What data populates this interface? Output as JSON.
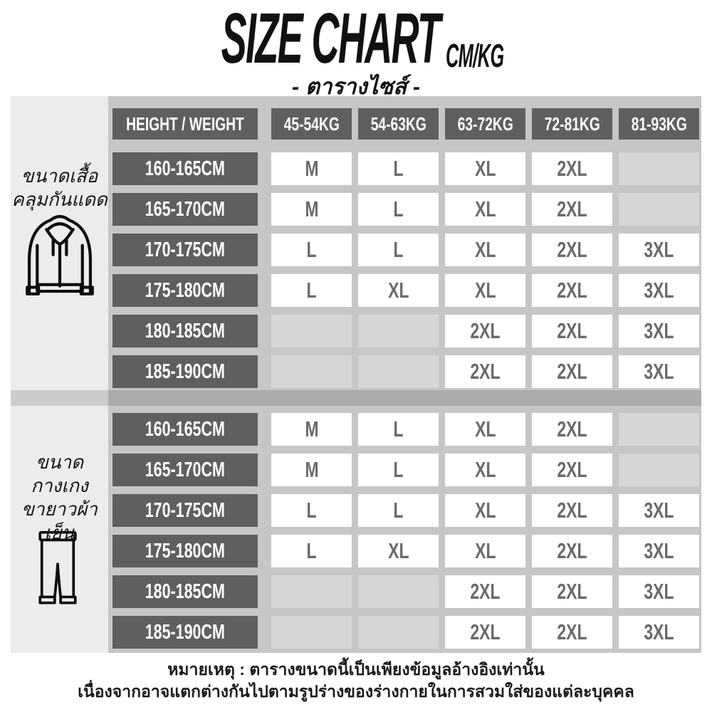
{
  "title": {
    "main": "SIZE CHART",
    "unit": "CM/KG",
    "subtitle": "- ตารางไซส์ -"
  },
  "chart_data": {
    "type": "table",
    "title": "SIZE CHART CM/KG - ตารางไซส์",
    "columns": [
      "HEIGHT / WEIGHT",
      "45-54KG",
      "54-63KG",
      "63-72KG",
      "72-81KG",
      "81-93KG"
    ],
    "sections": [
      {
        "label_lines": [
          "ขนาดเสื้อ",
          "คลุมกันแดด"
        ],
        "icon": "hoodie-icon",
        "rows": [
          {
            "height": "160-165CM",
            "sizes": [
              "M",
              "L",
              "XL",
              "2XL",
              ""
            ]
          },
          {
            "height": "165-170CM",
            "sizes": [
              "M",
              "L",
              "XL",
              "2XL",
              ""
            ]
          },
          {
            "height": "170-175CM",
            "sizes": [
              "L",
              "L",
              "XL",
              "2XL",
              "3XL"
            ]
          },
          {
            "height": "175-180CM",
            "sizes": [
              "L",
              "XL",
              "XL",
              "2XL",
              "3XL"
            ]
          },
          {
            "height": "180-185CM",
            "sizes": [
              "",
              "",
              "2XL",
              "2XL",
              "3XL"
            ]
          },
          {
            "height": "185-190CM",
            "sizes": [
              "",
              "",
              "2XL",
              "2XL",
              "3XL"
            ]
          }
        ]
      },
      {
        "label_lines": [
          "ขนาด",
          "กางเกง",
          "ขายาวผ้าเย็น"
        ],
        "icon": "pants-icon",
        "rows": [
          {
            "height": "160-165CM",
            "sizes": [
              "M",
              "L",
              "XL",
              "2XL",
              ""
            ]
          },
          {
            "height": "165-170CM",
            "sizes": [
              "M",
              "L",
              "XL",
              "2XL",
              ""
            ]
          },
          {
            "height": "170-175CM",
            "sizes": [
              "L",
              "L",
              "XL",
              "2XL",
              "3XL"
            ]
          },
          {
            "height": "175-180CM",
            "sizes": [
              "L",
              "XL",
              "XL",
              "2XL",
              "3XL"
            ]
          },
          {
            "height": "180-185CM",
            "sizes": [
              "",
              "",
              "2XL",
              "2XL",
              "3XL"
            ]
          },
          {
            "height": "185-190CM",
            "sizes": [
              "",
              "",
              "2XL",
              "2XL",
              "3XL"
            ]
          }
        ]
      }
    ]
  },
  "footer": {
    "line1": "หมายเหตุ : ตารางขนาดนี้เป็นเพียงข้อมูลอ้างอิงเท่านั้น",
    "line2": "เนื่องจากอาจแตกต่างกันไปตามรูปร่างของร่างกายในการสวมใส่ของแต่ละบุคคล"
  },
  "colors": {
    "page_bg": "#ffffff",
    "band_bg": "#c6c6c6",
    "panel_bg": "#ececec",
    "box_dark": "#5f5f5f",
    "cell_white": "#ffffff",
    "cell_empty": "#d6d6d6",
    "size_text": "#6a6a6a",
    "heading_text": "#111111"
  }
}
